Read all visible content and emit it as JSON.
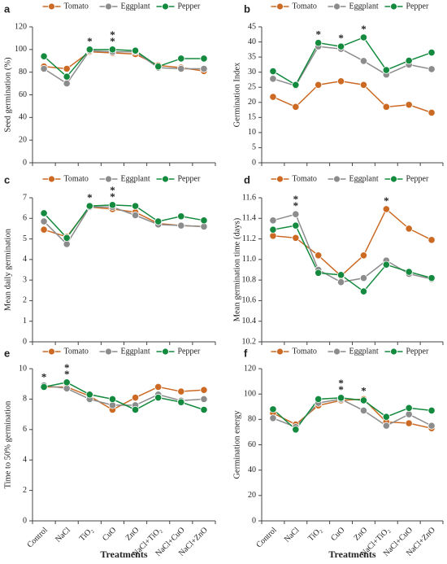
{
  "chart_data": [
    {
      "type": "line",
      "label": "a",
      "ylabel": "Seed germination (%)",
      "ylim": [
        0,
        120
      ],
      "yticks": [
        0,
        20,
        40,
        60,
        80,
        100,
        120
      ],
      "series": [
        {
          "name": "Tomato",
          "color": "#cc6a24",
          "values": [
            85,
            83,
            98,
            97,
            96,
            86,
            84,
            81
          ]
        },
        {
          "name": "Eggplant",
          "color": "#8c8c8c",
          "values": [
            83,
            70,
            99,
            98,
            98,
            84,
            83,
            83
          ]
        },
        {
          "name": "Pepper",
          "color": "#138a3e",
          "values": [
            94,
            76,
            100,
            100,
            99,
            85,
            92,
            92
          ]
        }
      ],
      "annotations": [
        {
          "text": "*",
          "series": "Tomato",
          "index": 2
        },
        {
          "text": "*",
          "series": "Eggplant",
          "index": 3
        },
        {
          "text": "*",
          "series": "Pepper",
          "index": 3
        }
      ]
    },
    {
      "type": "line",
      "label": "b",
      "ylabel": "Germination Index",
      "ylim": [
        0,
        45
      ],
      "yticks": [
        0,
        5,
        10,
        15,
        20,
        25,
        30,
        35,
        40,
        45
      ],
      "series": [
        {
          "name": "Tomato",
          "color": "#cc6a24",
          "values": [
            21.8,
            18.5,
            25.8,
            27,
            25.8,
            18.5,
            19.2,
            16.6
          ]
        },
        {
          "name": "Eggplant",
          "color": "#8c8c8c",
          "values": [
            27.8,
            25.5,
            38.5,
            37.7,
            33.7,
            29.2,
            32.5,
            31
          ]
        },
        {
          "name": "Pepper",
          "color": "#138a3e",
          "values": [
            30.3,
            25.8,
            39.7,
            38.5,
            41.5,
            30.7,
            33.8,
            36.5
          ]
        }
      ],
      "annotations": [
        {
          "text": "*",
          "series": "Eggplant",
          "index": 2
        },
        {
          "text": "*",
          "series": "Tomato",
          "index": 3
        },
        {
          "text": "*",
          "series": "Pepper",
          "index": 4
        }
      ]
    },
    {
      "type": "line",
      "label": "c",
      "ylabel": "Mean daily germination",
      "ylim": [
        0,
        7
      ],
      "yticks": [
        0,
        1,
        2,
        3,
        4,
        5,
        6,
        7
      ],
      "series": [
        {
          "name": "Tomato",
          "color": "#cc6a24",
          "values": [
            5.45,
            5.1,
            6.55,
            6.45,
            6.3,
            5.75,
            5.65,
            5.6
          ]
        },
        {
          "name": "Eggplant",
          "color": "#8c8c8c",
          "values": [
            5.85,
            4.75,
            6.55,
            6.55,
            6.15,
            5.7,
            5.65,
            5.6
          ]
        },
        {
          "name": "Pepper",
          "color": "#138a3e",
          "values": [
            6.25,
            5.05,
            6.6,
            6.65,
            6.6,
            5.85,
            6.1,
            5.9
          ]
        }
      ],
      "annotations": [
        {
          "text": "*",
          "series": "Tomato",
          "index": 2
        },
        {
          "text": "*",
          "series": "Eggplant",
          "index": 3
        },
        {
          "text": "*",
          "series": "Pepper",
          "index": 3
        }
      ]
    },
    {
      "type": "line",
      "label": "d",
      "ylabel": "Mean germination time (days)",
      "ylim": [
        10.2,
        11.6
      ],
      "yticks": [
        10.2,
        10.4,
        10.6,
        10.8,
        {
          "value": 11,
          "label": "11.0"
        },
        11.2,
        11.4,
        11.6
      ],
      "series": [
        {
          "name": "Tomato",
          "color": "#cc6a24",
          "values": [
            11.23,
            11.21,
            11.04,
            10.84,
            11.04,
            11.49,
            11.3,
            11.19
          ]
        },
        {
          "name": "Eggplant",
          "color": "#8c8c8c",
          "values": [
            11.38,
            11.44,
            10.9,
            10.78,
            10.82,
            10.99,
            10.86,
            10.81
          ]
        },
        {
          "name": "Pepper",
          "color": "#138a3e",
          "values": [
            11.29,
            11.33,
            10.87,
            10.85,
            10.69,
            10.95,
            10.88,
            10.82
          ]
        }
      ],
      "annotations": [
        {
          "text": "*",
          "series": "Eggplant",
          "index": 1
        },
        {
          "text": "*",
          "series": "Pepper",
          "index": 1
        },
        {
          "text": "*",
          "series": "Tomato",
          "index": 5
        }
      ]
    },
    {
      "type": "line",
      "label": "e",
      "ylabel": "Time to 50% germination",
      "xlabel": "Treatments",
      "categories": [
        "Control",
        "NaCl",
        "TiO₂",
        "CuO",
        "ZnO",
        "NaCl+TiO₂",
        "NaCl+CuO",
        "NaCl+ZnO"
      ],
      "ylim": [
        0,
        10
      ],
      "yticks": [
        0,
        2,
        4,
        6,
        8,
        10
      ],
      "series": [
        {
          "name": "Tomato",
          "color": "#cc6a24",
          "values": [
            8.8,
            8.8,
            8.2,
            7.3,
            8.1,
            8.8,
            8.5,
            8.6
          ]
        },
        {
          "name": "Eggplant",
          "color": "#8c8c8c",
          "values": [
            8.9,
            8.7,
            8.0,
            7.6,
            7.6,
            8.3,
            7.9,
            8.0
          ]
        },
        {
          "name": "Pepper",
          "color": "#138a3e",
          "values": [
            8.8,
            9.1,
            8.3,
            8.0,
            7.3,
            8.1,
            7.8,
            7.3
          ]
        }
      ],
      "annotations": [
        {
          "text": "*",
          "series": "Eggplant",
          "index": 0
        },
        {
          "text": "*",
          "series": "Tomato",
          "index": 1
        },
        {
          "text": "*",
          "series": "Pepper",
          "index": 1
        }
      ]
    },
    {
      "type": "line",
      "label": "f",
      "ylabel": "Germination energy",
      "xlabel": "Treatments",
      "categories": [
        "Control",
        "NaCl",
        "TiO₂",
        "CuO",
        "ZnO",
        "NaCl+TiO₂",
        "NaCl+CuO",
        "NaCl+ZnO"
      ],
      "ylim": [
        0,
        120
      ],
      "yticks": [
        0,
        20,
        40,
        60,
        80,
        100,
        120
      ],
      "series": [
        {
          "name": "Tomato",
          "color": "#cc6a24",
          "values": [
            85,
            76,
            91,
            95,
            96,
            78,
            77,
            73
          ]
        },
        {
          "name": "Eggplant",
          "color": "#8c8c8c",
          "values": [
            81,
            74,
            93,
            96,
            87,
            75,
            84,
            75
          ]
        },
        {
          "name": "Pepper",
          "color": "#138a3e",
          "values": [
            88,
            72,
            96,
            97,
            95,
            82,
            89,
            87
          ]
        }
      ],
      "annotations": [
        {
          "text": "*",
          "series": "Eggplant",
          "index": 3
        },
        {
          "text": "*",
          "series": "Pepper",
          "index": 3
        },
        {
          "text": "*",
          "series": "Tomato",
          "index": 4
        }
      ]
    }
  ]
}
